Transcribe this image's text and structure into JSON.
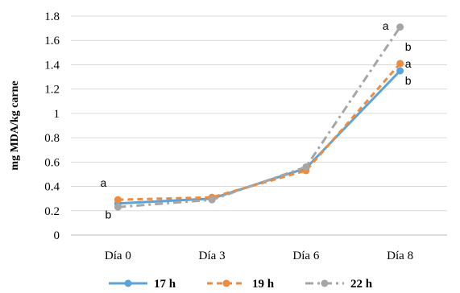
{
  "chart_data": {
    "type": "line",
    "title": "",
    "xlabel": "",
    "ylabel": "mg MDA/kg carne",
    "categories": [
      "Día 0",
      "Día 3",
      "Día 6",
      "Día 8"
    ],
    "ylim": [
      0,
      1.8
    ],
    "ytick_step": 0.2,
    "yticks": [
      "0",
      "0.2",
      "0.4",
      "0.6",
      "0.8",
      "1",
      "1.2",
      "1.4",
      "1.6",
      "1.8"
    ],
    "grid": true,
    "legend_position": "bottom",
    "series": [
      {
        "name": "17 h",
        "values": [
          0.26,
          0.3,
          0.55,
          1.35
        ],
        "color": "#5BA3D9",
        "dash": "solid"
      },
      {
        "name": "19 h",
        "values": [
          0.29,
          0.31,
          0.53,
          1.41
        ],
        "color": "#ED8B3F",
        "dash": "dashed"
      },
      {
        "name": "22 h",
        "values": [
          0.23,
          0.29,
          0.56,
          1.71
        ],
        "color": "#A6A6A6",
        "dash": "dashdot"
      }
    ],
    "annotations": [
      {
        "text": "a",
        "category": "Día 0",
        "y": 0.43
      },
      {
        "text": "b",
        "category": "Día 0",
        "y": 0.17
      },
      {
        "text": "a",
        "category": "Día 8",
        "y": 1.72
      },
      {
        "text": "b",
        "category": "Día 8",
        "y": 1.55
      },
      {
        "text": "a",
        "category": "Día 8",
        "y": 1.41
      },
      {
        "text": "b",
        "category": "Día 8",
        "y": 1.27
      }
    ]
  }
}
